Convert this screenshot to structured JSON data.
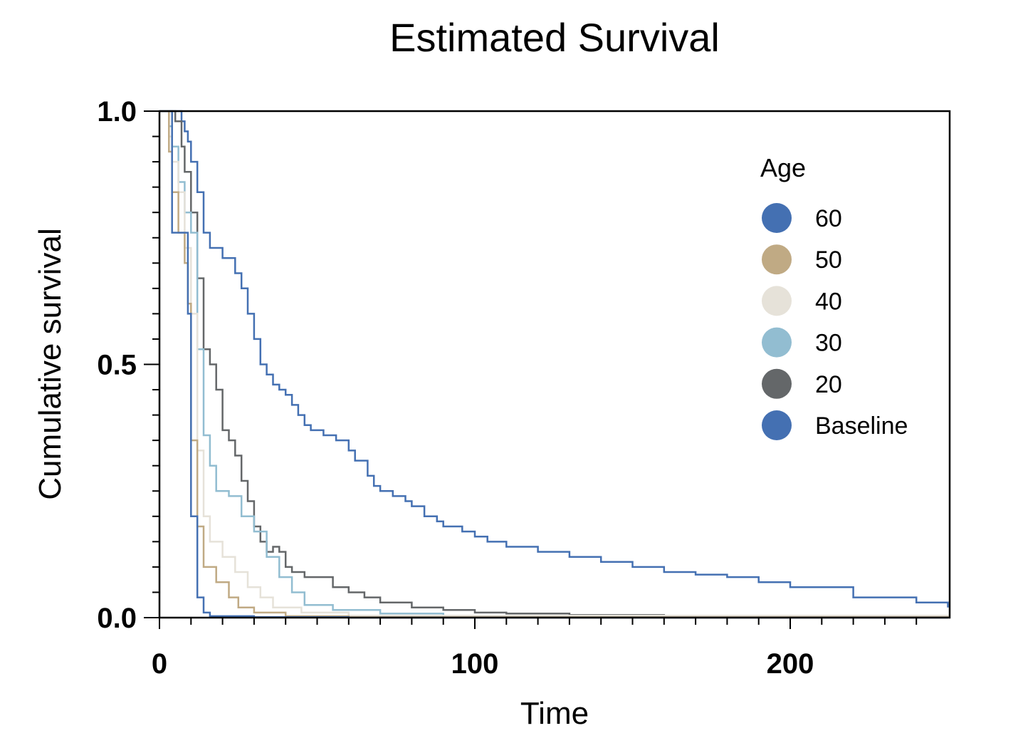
{
  "chart_data": {
    "type": "line",
    "title": "Estimated Survival",
    "xlabel": "Time",
    "ylabel": "Cumulative survival",
    "xlim": [
      0,
      250
    ],
    "ylim": [
      0,
      1.0
    ],
    "x_ticks": [
      0,
      100,
      200
    ],
    "x_tick_labels": [
      "0",
      "100",
      "200"
    ],
    "x_minor_step": 10,
    "y_ticks": [
      0.0,
      0.5,
      1.0
    ],
    "y_tick_labels": [
      "0.0",
      "0.5",
      "1.0"
    ],
    "y_minor_step": 0.05,
    "grid": false,
    "legend": {
      "title": "Age",
      "position": "top-right"
    },
    "series": [
      {
        "name": "60",
        "color": "#4470b2",
        "x": [
          0,
          3,
          4,
          4,
          9,
          10,
          12,
          14,
          16,
          30,
          60,
          250
        ],
        "y": [
          1.0,
          1.0,
          0.76,
          0.76,
          0.6,
          0.2,
          0.04,
          0.01,
          0.003,
          0.001,
          0.0,
          0.0
        ]
      },
      {
        "name": "50",
        "color": "#c0aa84",
        "x": [
          0,
          3,
          4,
          6,
          8,
          9,
          10,
          12,
          14,
          18,
          22,
          25,
          30,
          40,
          60,
          250
        ],
        "y": [
          1.0,
          0.92,
          0.84,
          0.76,
          0.7,
          0.62,
          0.35,
          0.18,
          0.1,
          0.07,
          0.04,
          0.02,
          0.01,
          0.003,
          0.001,
          0.0
        ]
      },
      {
        "name": "40",
        "color": "#e6e2d9",
        "x": [
          0,
          3,
          4,
          6,
          8,
          10,
          12,
          14,
          16,
          20,
          24,
          28,
          32,
          36,
          45,
          60,
          250
        ],
        "y": [
          1.0,
          0.95,
          0.9,
          0.84,
          0.73,
          0.6,
          0.33,
          0.2,
          0.15,
          0.12,
          0.09,
          0.06,
          0.04,
          0.02,
          0.01,
          0.004,
          0.0
        ]
      },
      {
        "name": "30",
        "color": "#92bdd1",
        "x": [
          0,
          3,
          4,
          6,
          8,
          10,
          12,
          14,
          16,
          18,
          22,
          26,
          30,
          34,
          38,
          42,
          46,
          55,
          70,
          90,
          120,
          250
        ],
        "y": [
          1.0,
          0.97,
          0.93,
          0.86,
          0.8,
          0.76,
          0.53,
          0.36,
          0.3,
          0.25,
          0.24,
          0.2,
          0.17,
          0.12,
          0.08,
          0.05,
          0.025,
          0.015,
          0.008,
          0.003,
          0.001,
          0.0
        ]
      },
      {
        "name": "20",
        "color": "#646769",
        "x": [
          0,
          4,
          5,
          7,
          8,
          10,
          12,
          14,
          16,
          18,
          20,
          22,
          24,
          26,
          28,
          30,
          32,
          34,
          36,
          38,
          40,
          42,
          46,
          55,
          60,
          65,
          70,
          80,
          90,
          100,
          110,
          130,
          160,
          190,
          250
        ],
        "y": [
          1.0,
          1.0,
          0.98,
          0.93,
          0.88,
          0.8,
          0.67,
          0.53,
          0.5,
          0.45,
          0.37,
          0.35,
          0.32,
          0.27,
          0.23,
          0.18,
          0.15,
          0.13,
          0.14,
          0.13,
          0.1,
          0.09,
          0.08,
          0.06,
          0.05,
          0.04,
          0.03,
          0.02,
          0.015,
          0.01,
          0.008,
          0.005,
          0.003,
          0.001,
          0.0
        ]
      },
      {
        "name": "Baseline",
        "color": "#4470b2",
        "x": [
          0,
          6,
          7,
          8,
          9,
          10,
          12,
          14,
          16,
          20,
          24,
          26,
          28,
          30,
          32,
          34,
          36,
          38,
          40,
          42,
          44,
          46,
          48,
          52,
          56,
          60,
          62,
          66,
          68,
          70,
          74,
          78,
          80,
          84,
          88,
          90,
          96,
          100,
          104,
          110,
          120,
          130,
          140,
          145,
          150,
          160,
          170,
          180,
          190,
          200,
          220,
          240,
          250
        ],
        "y": [
          1.0,
          1.0,
          0.98,
          0.96,
          0.94,
          0.9,
          0.84,
          0.76,
          0.73,
          0.71,
          0.68,
          0.65,
          0.6,
          0.55,
          0.5,
          0.48,
          0.46,
          0.45,
          0.44,
          0.42,
          0.4,
          0.38,
          0.37,
          0.36,
          0.35,
          0.33,
          0.31,
          0.28,
          0.26,
          0.25,
          0.24,
          0.23,
          0.22,
          0.2,
          0.19,
          0.18,
          0.17,
          0.16,
          0.15,
          0.14,
          0.13,
          0.12,
          0.11,
          0.11,
          0.1,
          0.09,
          0.085,
          0.08,
          0.07,
          0.06,
          0.04,
          0.03,
          0.02
        ]
      }
    ]
  }
}
